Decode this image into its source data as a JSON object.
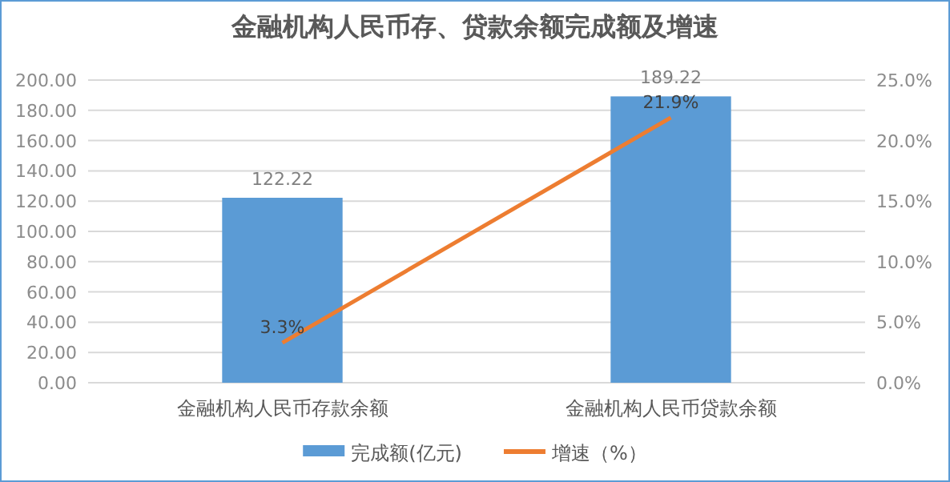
{
  "chart_data": {
    "type": "bar",
    "title": "金融机构人民币存、贷款余额完成额及增速",
    "categories": [
      "金融机构人民币存款余额",
      "金融机构人民币贷款余额"
    ],
    "series": [
      {
        "name": "完成额(亿元)",
        "color": "#5b9bd5",
        "values": [
          122.22,
          189.22
        ],
        "value_labels": [
          "122.22",
          "189.22"
        ]
      },
      {
        "name": "增速（%）",
        "type": "line",
        "axis": "y2",
        "color": "#ed7d31",
        "values": [
          3.3,
          21.9
        ],
        "value_labels": [
          "3.3%",
          "21.9%"
        ]
      }
    ],
    "ylim": [
      0,
      200
    ],
    "yticks": [
      {
        "value": 0,
        "label": "0.00"
      },
      {
        "value": 20,
        "label": "20.00"
      },
      {
        "value": 40,
        "label": "40.00"
      },
      {
        "value": 60,
        "label": "60.00"
      },
      {
        "value": 80,
        "label": "80.00"
      },
      {
        "value": 100,
        "label": "100.00"
      },
      {
        "value": 120,
        "label": "120.00"
      },
      {
        "value": 140,
        "label": "140.00"
      },
      {
        "value": 160,
        "label": "160.00"
      },
      {
        "value": 180,
        "label": "180.00"
      },
      {
        "value": 200,
        "label": "200.00"
      }
    ],
    "y2lim": [
      0,
      25
    ],
    "y2ticks": [
      {
        "value": 0,
        "label": "0.0%"
      },
      {
        "value": 5,
        "label": "5.0%"
      },
      {
        "value": 10,
        "label": "10.0%"
      },
      {
        "value": 15,
        "label": "15.0%"
      },
      {
        "value": 20,
        "label": "20.0%"
      },
      {
        "value": 25,
        "label": "25.0%"
      }
    ],
    "grid": "y",
    "legend": "bottom",
    "marker": "none",
    "line_style": "solid"
  }
}
